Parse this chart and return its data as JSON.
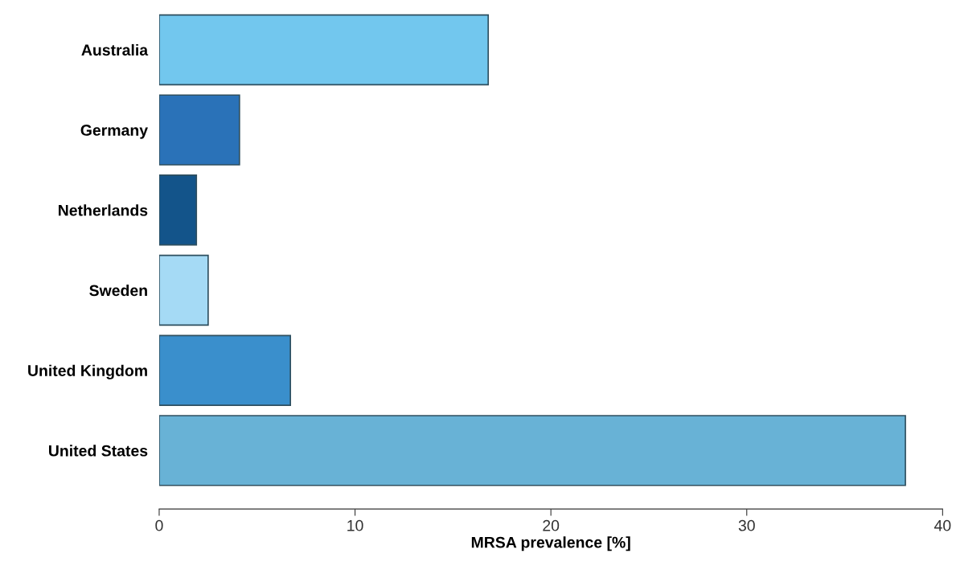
{
  "chart_data": {
    "type": "bar",
    "orientation": "horizontal",
    "xlabel": "MRSA prevalence [%]",
    "categories": [
      "Australia",
      "Germany",
      "Netherlands",
      "Sweden",
      "United Kingdom",
      "United States"
    ],
    "values": [
      16.8,
      4.1,
      1.9,
      2.5,
      6.7,
      38.1
    ],
    "colors": [
      "#72c7ee",
      "#2a72b8",
      "#13548a",
      "#a5daf5",
      "#3a8fcc",
      "#68b2d6"
    ],
    "xlim": [
      0,
      40
    ],
    "xticks": [
      0,
      10,
      20,
      30,
      40
    ],
    "grid": false
  }
}
